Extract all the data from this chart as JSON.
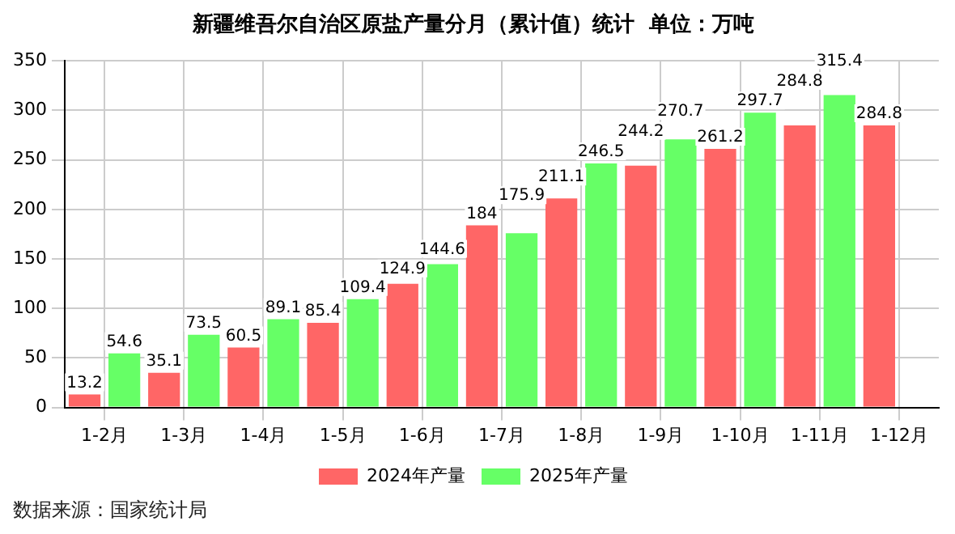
{
  "chart_data": {
    "type": "bar",
    "title": "新疆维吾尔自治区原盐产量分月（累计值）统计  单位：万吨",
    "categories": [
      "1-2月",
      "1-3月",
      "1-4月",
      "1-5月",
      "1-6月",
      "1-7月",
      "1-8月",
      "1-9月",
      "1-10月",
      "1-11月",
      "1-12月"
    ],
    "series": [
      {
        "name": "2024年产量",
        "color": "#ff6666",
        "values": [
          13.2,
          35.1,
          60.5,
          85.4,
          124.9,
          184,
          211.1,
          244.2,
          261.2,
          284.8,
          284.8
        ]
      },
      {
        "name": "2025年产量",
        "color": "#66ff66",
        "values": [
          54.6,
          73.5,
          89.1,
          109.4,
          144.6,
          175.9,
          246.5,
          270.7,
          297.7,
          315.4,
          null
        ]
      }
    ],
    "ylim": [
      0,
      350
    ],
    "yticks": [
      0,
      50,
      100,
      150,
      200,
      250,
      300,
      350
    ],
    "grid": true,
    "legend": "bottom",
    "data_labels": true,
    "annotations": [
      "数据来源：国家统计局"
    ]
  }
}
